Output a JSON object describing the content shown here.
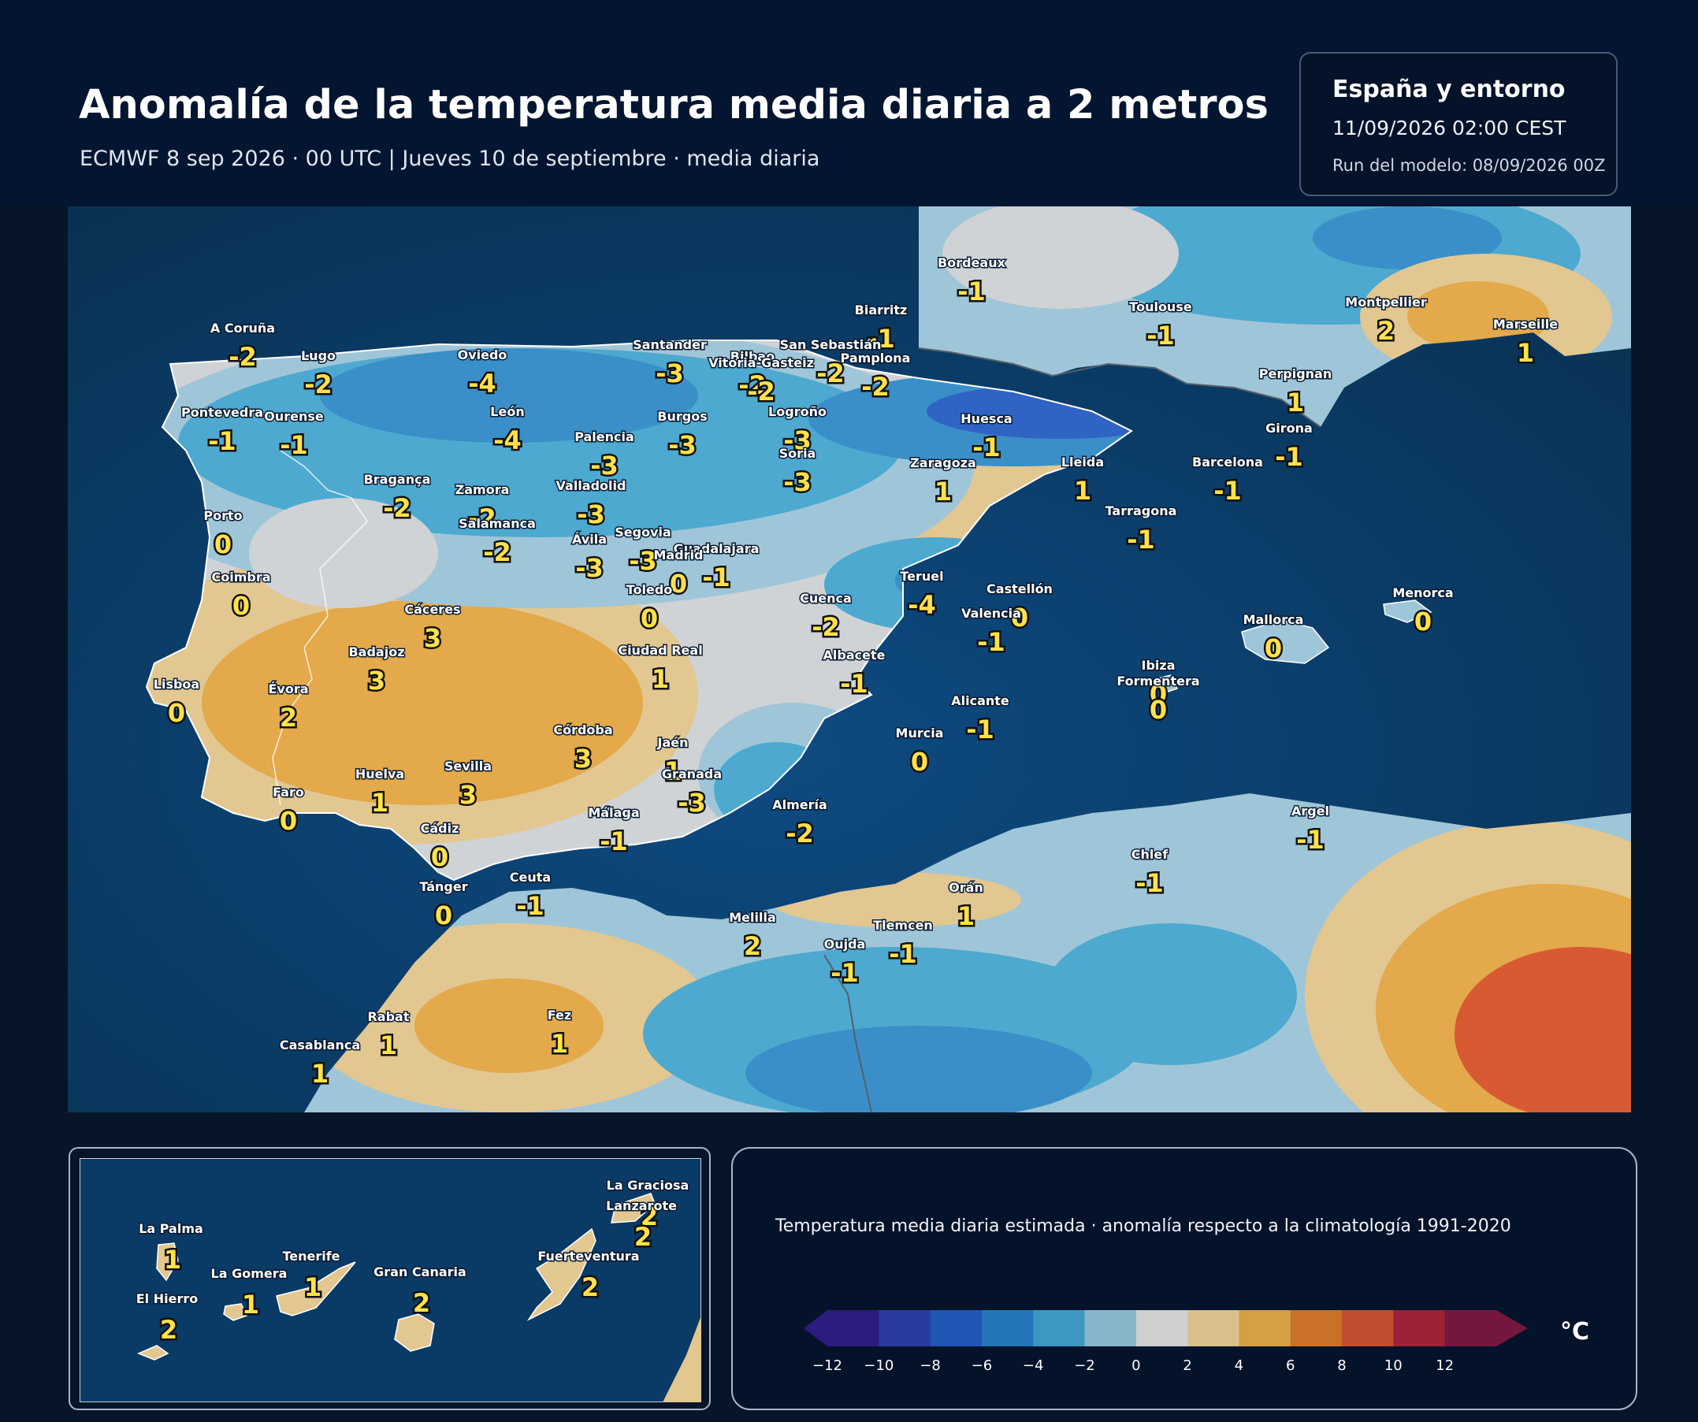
{
  "header": {
    "title": "Anomalía de la temperatura media diaria a 2 metros",
    "subtitle": "ECMWF 8 sep 2026 · 00 UTC  |  Jueves 10 de septiembre · media diaria"
  },
  "infobox": {
    "region": "España y entorno",
    "datetime": "11/09/2026  02:00 CEST",
    "run": "Run del modelo: 08/09/2026 00Z"
  },
  "colors": {
    "sea": "#0b3a6a",
    "land_neutral": "#cfd3d6",
    "land_light_blue": "#9fc6d8",
    "land_blue": "#4da9cf",
    "land_mid_blue": "#3a8fc8",
    "land_dark_blue": "#2f64c4",
    "land_warm": "#e2c791",
    "land_orange": "#e3a94a",
    "land_red": "#d85a32"
  },
  "stations": [
    {
      "name": "Bordeaux",
      "value": "-1"
    },
    {
      "name": "Toulouse",
      "value": "-1"
    },
    {
      "name": "Montpellier",
      "value": "2"
    },
    {
      "name": "Marseille",
      "value": "1"
    },
    {
      "name": "Perpignan",
      "value": "1"
    },
    {
      "name": "Biarritz",
      "value": "-1"
    },
    {
      "name": "A Coruña",
      "value": "-2"
    },
    {
      "name": "Lugo",
      "value": "-2"
    },
    {
      "name": "Oviedo",
      "value": "-4"
    },
    {
      "name": "Santander",
      "value": "-3"
    },
    {
      "name": "Bilbao",
      "value": "-2"
    },
    {
      "name": "San Sebastián",
      "value": "-2"
    },
    {
      "name": "Vitoria-Gasteiz",
      "value": "-2"
    },
    {
      "name": "Pamplona",
      "value": "-2"
    },
    {
      "name": "Pontevedra",
      "value": "-1"
    },
    {
      "name": "Ourense",
      "value": "-1"
    },
    {
      "name": "León",
      "value": "-4"
    },
    {
      "name": "Burgos",
      "value": "-3"
    },
    {
      "name": "Logroño",
      "value": "-3"
    },
    {
      "name": "Huesca",
      "value": "-1"
    },
    {
      "name": "Girona",
      "value": "-1"
    },
    {
      "name": "Palencia",
      "value": "-3"
    },
    {
      "name": "Soria",
      "value": "-3"
    },
    {
      "name": "Zaragoza",
      "value": "1"
    },
    {
      "name": "Lleida",
      "value": "1"
    },
    {
      "name": "Barcelona",
      "value": "-1"
    },
    {
      "name": "Bragança",
      "value": "-2"
    },
    {
      "name": "Zamora",
      "value": "-2"
    },
    {
      "name": "Valladolid",
      "value": "-3"
    },
    {
      "name": "Tarragona",
      "value": "-1"
    },
    {
      "name": "Porto",
      "value": "0"
    },
    {
      "name": "Salamanca",
      "value": "-2"
    },
    {
      "name": "Segovia",
      "value": "-3"
    },
    {
      "name": "Ávila",
      "value": "-3"
    },
    {
      "name": "Guadalajara",
      "value": "-1"
    },
    {
      "name": "Madrid",
      "value": "0"
    },
    {
      "name": "Teruel",
      "value": "-4"
    },
    {
      "name": "Coimbra",
      "value": "0"
    },
    {
      "name": "Toledo",
      "value": "0"
    },
    {
      "name": "Cuenca",
      "value": "-2"
    },
    {
      "name": "Castellón",
      "value": "0"
    },
    {
      "name": "Menorca",
      "value": "0"
    },
    {
      "name": "Cáceres",
      "value": "3"
    },
    {
      "name": "Valencia",
      "value": "-1"
    },
    {
      "name": "Mallorca",
      "value": "0"
    },
    {
      "name": "Badajoz",
      "value": "3"
    },
    {
      "name": "Ciudad Real",
      "value": "1"
    },
    {
      "name": "Albacete",
      "value": "-1"
    },
    {
      "name": "Ibiza",
      "value": "0"
    },
    {
      "name": "Formentera",
      "value": "0"
    },
    {
      "name": "Lisboa",
      "value": "0"
    },
    {
      "name": "Évora",
      "value": "2"
    },
    {
      "name": "Alicante",
      "value": "-1"
    },
    {
      "name": "Murcia",
      "value": "0"
    },
    {
      "name": "Córdoba",
      "value": "3"
    },
    {
      "name": "Jaén",
      "value": "1"
    },
    {
      "name": "Sevilla",
      "value": "3"
    },
    {
      "name": "Huelva",
      "value": "1"
    },
    {
      "name": "Granada",
      "value": "-3"
    },
    {
      "name": "Faro",
      "value": "0"
    },
    {
      "name": "Almería",
      "value": "-2"
    },
    {
      "name": "Málaga",
      "value": "-1"
    },
    {
      "name": "Argel",
      "value": "-1"
    },
    {
      "name": "Cádiz",
      "value": "0"
    },
    {
      "name": "Chlef",
      "value": "-1"
    },
    {
      "name": "Ceuta",
      "value": "-1"
    },
    {
      "name": "Tánger",
      "value": "0"
    },
    {
      "name": "Orán",
      "value": "1"
    },
    {
      "name": "Melilla",
      "value": "2"
    },
    {
      "name": "Tlemcen",
      "value": "-1"
    },
    {
      "name": "Oujda",
      "value": "-1"
    },
    {
      "name": "Rabat",
      "value": "1"
    },
    {
      "name": "Fez",
      "value": "1"
    },
    {
      "name": "Casablanca",
      "value": "1"
    }
  ],
  "canarias": [
    {
      "name": "La Graciosa",
      "value": "2"
    },
    {
      "name": "Lanzarote",
      "value": "2"
    },
    {
      "name": "La Palma",
      "value": "1"
    },
    {
      "name": "Fuerteventura",
      "value": "2"
    },
    {
      "name": "Tenerife",
      "value": "1"
    },
    {
      "name": "La Gomera",
      "value": "1"
    },
    {
      "name": "Gran Canaria",
      "value": "2"
    },
    {
      "name": "El Hierro",
      "value": "2"
    }
  ],
  "legend": {
    "title": "Temperatura media diaria estimada · anomalía respecto a la climatología 1991-2020",
    "unit": "°C",
    "ticks": [
      "−12",
      "−10",
      "−8",
      "−6",
      "−4",
      "−2",
      "0",
      "2",
      "4",
      "6",
      "8",
      "10",
      "12"
    ],
    "bins": [
      "#2b1c7e",
      "#2a3aa0",
      "#1f55b5",
      "#2375b8",
      "#3c98c0",
      "#86b6c9",
      "#cfcfcf",
      "#d8bf8c",
      "#d4a044",
      "#c97126",
      "#c14e2f",
      "#9c2238",
      "#74173f"
    ]
  }
}
